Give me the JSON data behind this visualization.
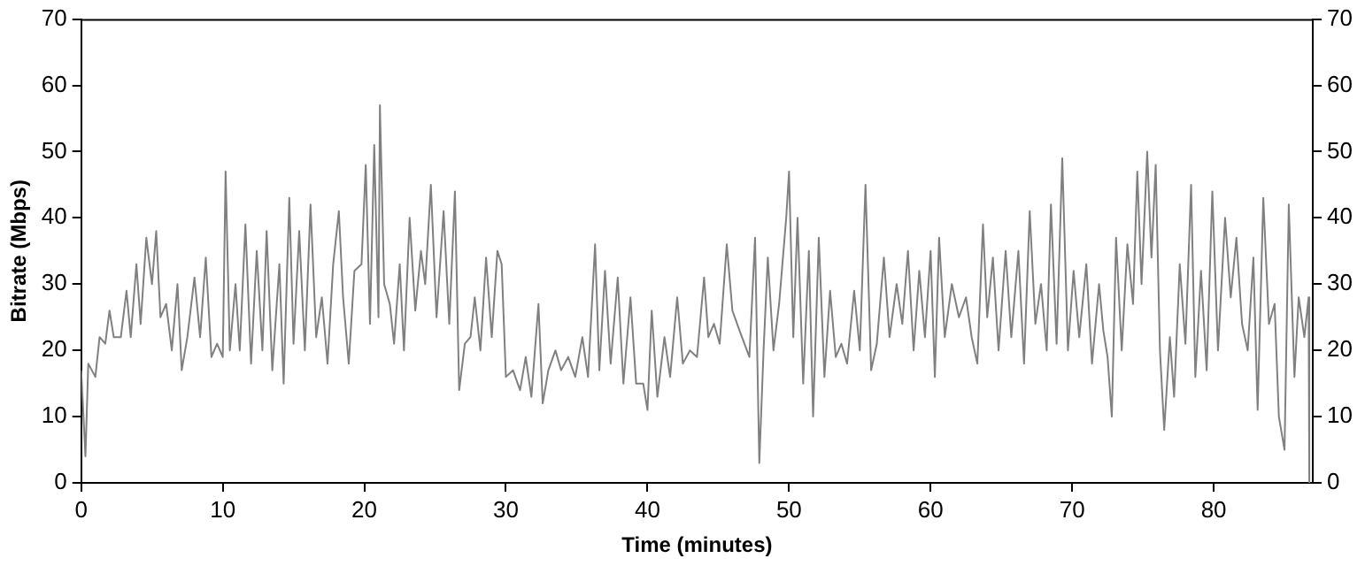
{
  "chart_data": {
    "type": "line",
    "xlabel": "Time (minutes)",
    "ylabel": "Bitrate (Mbps)",
    "xlim": [
      0,
      87
    ],
    "xticks": [
      0,
      10,
      20,
      30,
      40,
      50,
      60,
      70,
      80
    ],
    "ylim": [
      0,
      70
    ],
    "yticks": [
      0,
      10,
      20,
      30,
      40,
      50,
      60,
      70
    ],
    "y2lim": [
      0,
      70
    ],
    "y2ticks": [
      0,
      10,
      20,
      30,
      40,
      50,
      60,
      70
    ],
    "grid": false,
    "legend": false,
    "marker": "none",
    "line_style": "solid",
    "series": [
      {
        "color": "#808080",
        "x": [
          0,
          0.3,
          0.5,
          1,
          1.3,
          1.7,
          2,
          2.3,
          2.8,
          3.2,
          3.5,
          3.9,
          4.2,
          4.6,
          5,
          5.3,
          5.6,
          6,
          6.4,
          6.8,
          7.1,
          7.5,
          8,
          8.4,
          8.8,
          9.2,
          9.6,
          10,
          10.2,
          10.5,
          10.9,
          11.2,
          11.6,
          12,
          12.4,
          12.8,
          13.1,
          13.5,
          14,
          14.3,
          14.7,
          15,
          15.4,
          15.8,
          16.2,
          16.6,
          17,
          17.4,
          17.8,
          18.2,
          18.5,
          18.9,
          19.3,
          19.8,
          20.1,
          20.4,
          20.7,
          21,
          21.1,
          21.4,
          21.8,
          22.1,
          22.5,
          22.8,
          23.2,
          23.6,
          24,
          24.3,
          24.7,
          25.1,
          25.6,
          26,
          26.4,
          26.7,
          27.1,
          27.5,
          27.8,
          28.2,
          28.6,
          29,
          29.4,
          29.7,
          30,
          30.5,
          31,
          31.4,
          31.8,
          32.3,
          32.6,
          33,
          33.5,
          33.9,
          34.4,
          34.9,
          35.4,
          35.8,
          36.3,
          36.6,
          37,
          37.4,
          37.9,
          38.3,
          38.8,
          39.2,
          39.7,
          40,
          40.3,
          40.7,
          41.2,
          41.6,
          42.1,
          42.5,
          43,
          43.5,
          44,
          44.3,
          44.7,
          45.1,
          45.6,
          46,
          46.5,
          47.2,
          47.6,
          47.9,
          48.2,
          48.5,
          48.9,
          49.3,
          49.8,
          50,
          50.3,
          50.6,
          51,
          51.4,
          51.7,
          52.1,
          52.5,
          52.9,
          53.3,
          53.7,
          54.1,
          54.6,
          55,
          55.4,
          55.8,
          56.2,
          56.7,
          57.1,
          57.6,
          58,
          58.4,
          58.8,
          59.2,
          59.6,
          60,
          60.3,
          60.6,
          61,
          61.5,
          62,
          62.5,
          62.9,
          63.3,
          63.7,
          64,
          64.4,
          64.8,
          65.3,
          65.7,
          66.2,
          66.6,
          67,
          67.4,
          67.8,
          68.2,
          68.5,
          68.9,
          69.3,
          69.7,
          70.1,
          70.5,
          71,
          71.4,
          71.9,
          72.2,
          72.5,
          72.8,
          73.1,
          73.5,
          73.9,
          74.3,
          74.6,
          74.9,
          75.3,
          75.6,
          75.9,
          76.2,
          76.5,
          76.9,
          77.2,
          77.6,
          78,
          78.4,
          78.7,
          79.1,
          79.5,
          79.9,
          80.3,
          80.8,
          81.2,
          81.6,
          82,
          82.4,
          82.8,
          83.1,
          83.5,
          83.9,
          84.3,
          84.6,
          85,
          85.3,
          85.7,
          86,
          86.4,
          86.7,
          86.75
        ],
        "values": [
          17,
          4,
          18,
          16,
          22,
          21,
          26,
          22,
          22,
          29,
          22,
          33,
          24,
          37,
          30,
          38,
          25,
          27,
          20,
          30,
          17,
          22,
          31,
          22,
          34,
          19,
          21,
          19,
          47,
          20,
          30,
          20,
          39,
          18,
          35,
          20,
          38,
          17,
          33,
          15,
          43,
          21,
          38,
          20,
          42,
          22,
          28,
          18,
          33,
          41,
          28,
          18,
          32,
          33,
          48,
          24,
          51,
          25,
          57,
          30,
          27,
          21,
          33,
          20,
          40,
          26,
          35,
          30,
          45,
          25,
          41,
          24,
          44,
          14,
          21,
          22,
          28,
          20,
          34,
          22,
          35,
          33,
          16,
          17,
          14,
          19,
          13,
          27,
          12,
          17,
          20,
          17,
          19,
          16,
          22,
          16,
          36,
          17,
          32,
          18,
          31,
          15,
          28,
          15,
          15,
          11,
          26,
          13,
          22,
          16,
          28,
          18,
          20,
          19,
          31,
          22,
          24,
          21,
          36,
          26,
          23,
          19,
          37,
          3,
          20,
          34,
          20,
          27,
          40,
          47,
          22,
          40,
          15,
          35,
          10,
          37,
          16,
          29,
          19,
          21,
          18,
          29,
          20,
          45,
          17,
          21,
          34,
          22,
          30,
          24,
          35,
          20,
          32,
          22,
          35,
          16,
          37,
          22,
          30,
          25,
          28,
          22,
          18,
          39,
          25,
          34,
          20,
          35,
          22,
          35,
          18,
          41,
          24,
          30,
          20,
          42,
          21,
          49,
          20,
          32,
          22,
          33,
          18,
          30,
          23,
          19,
          10,
          37,
          20,
          36,
          27,
          47,
          30,
          50,
          34,
          48,
          20,
          8,
          22,
          13,
          33,
          21,
          45,
          16,
          32,
          17,
          44,
          20,
          40,
          28,
          37,
          24,
          20,
          34,
          11,
          43,
          24,
          27,
          10,
          5,
          42,
          16,
          28,
          22,
          28,
          0
        ]
      }
    ]
  }
}
